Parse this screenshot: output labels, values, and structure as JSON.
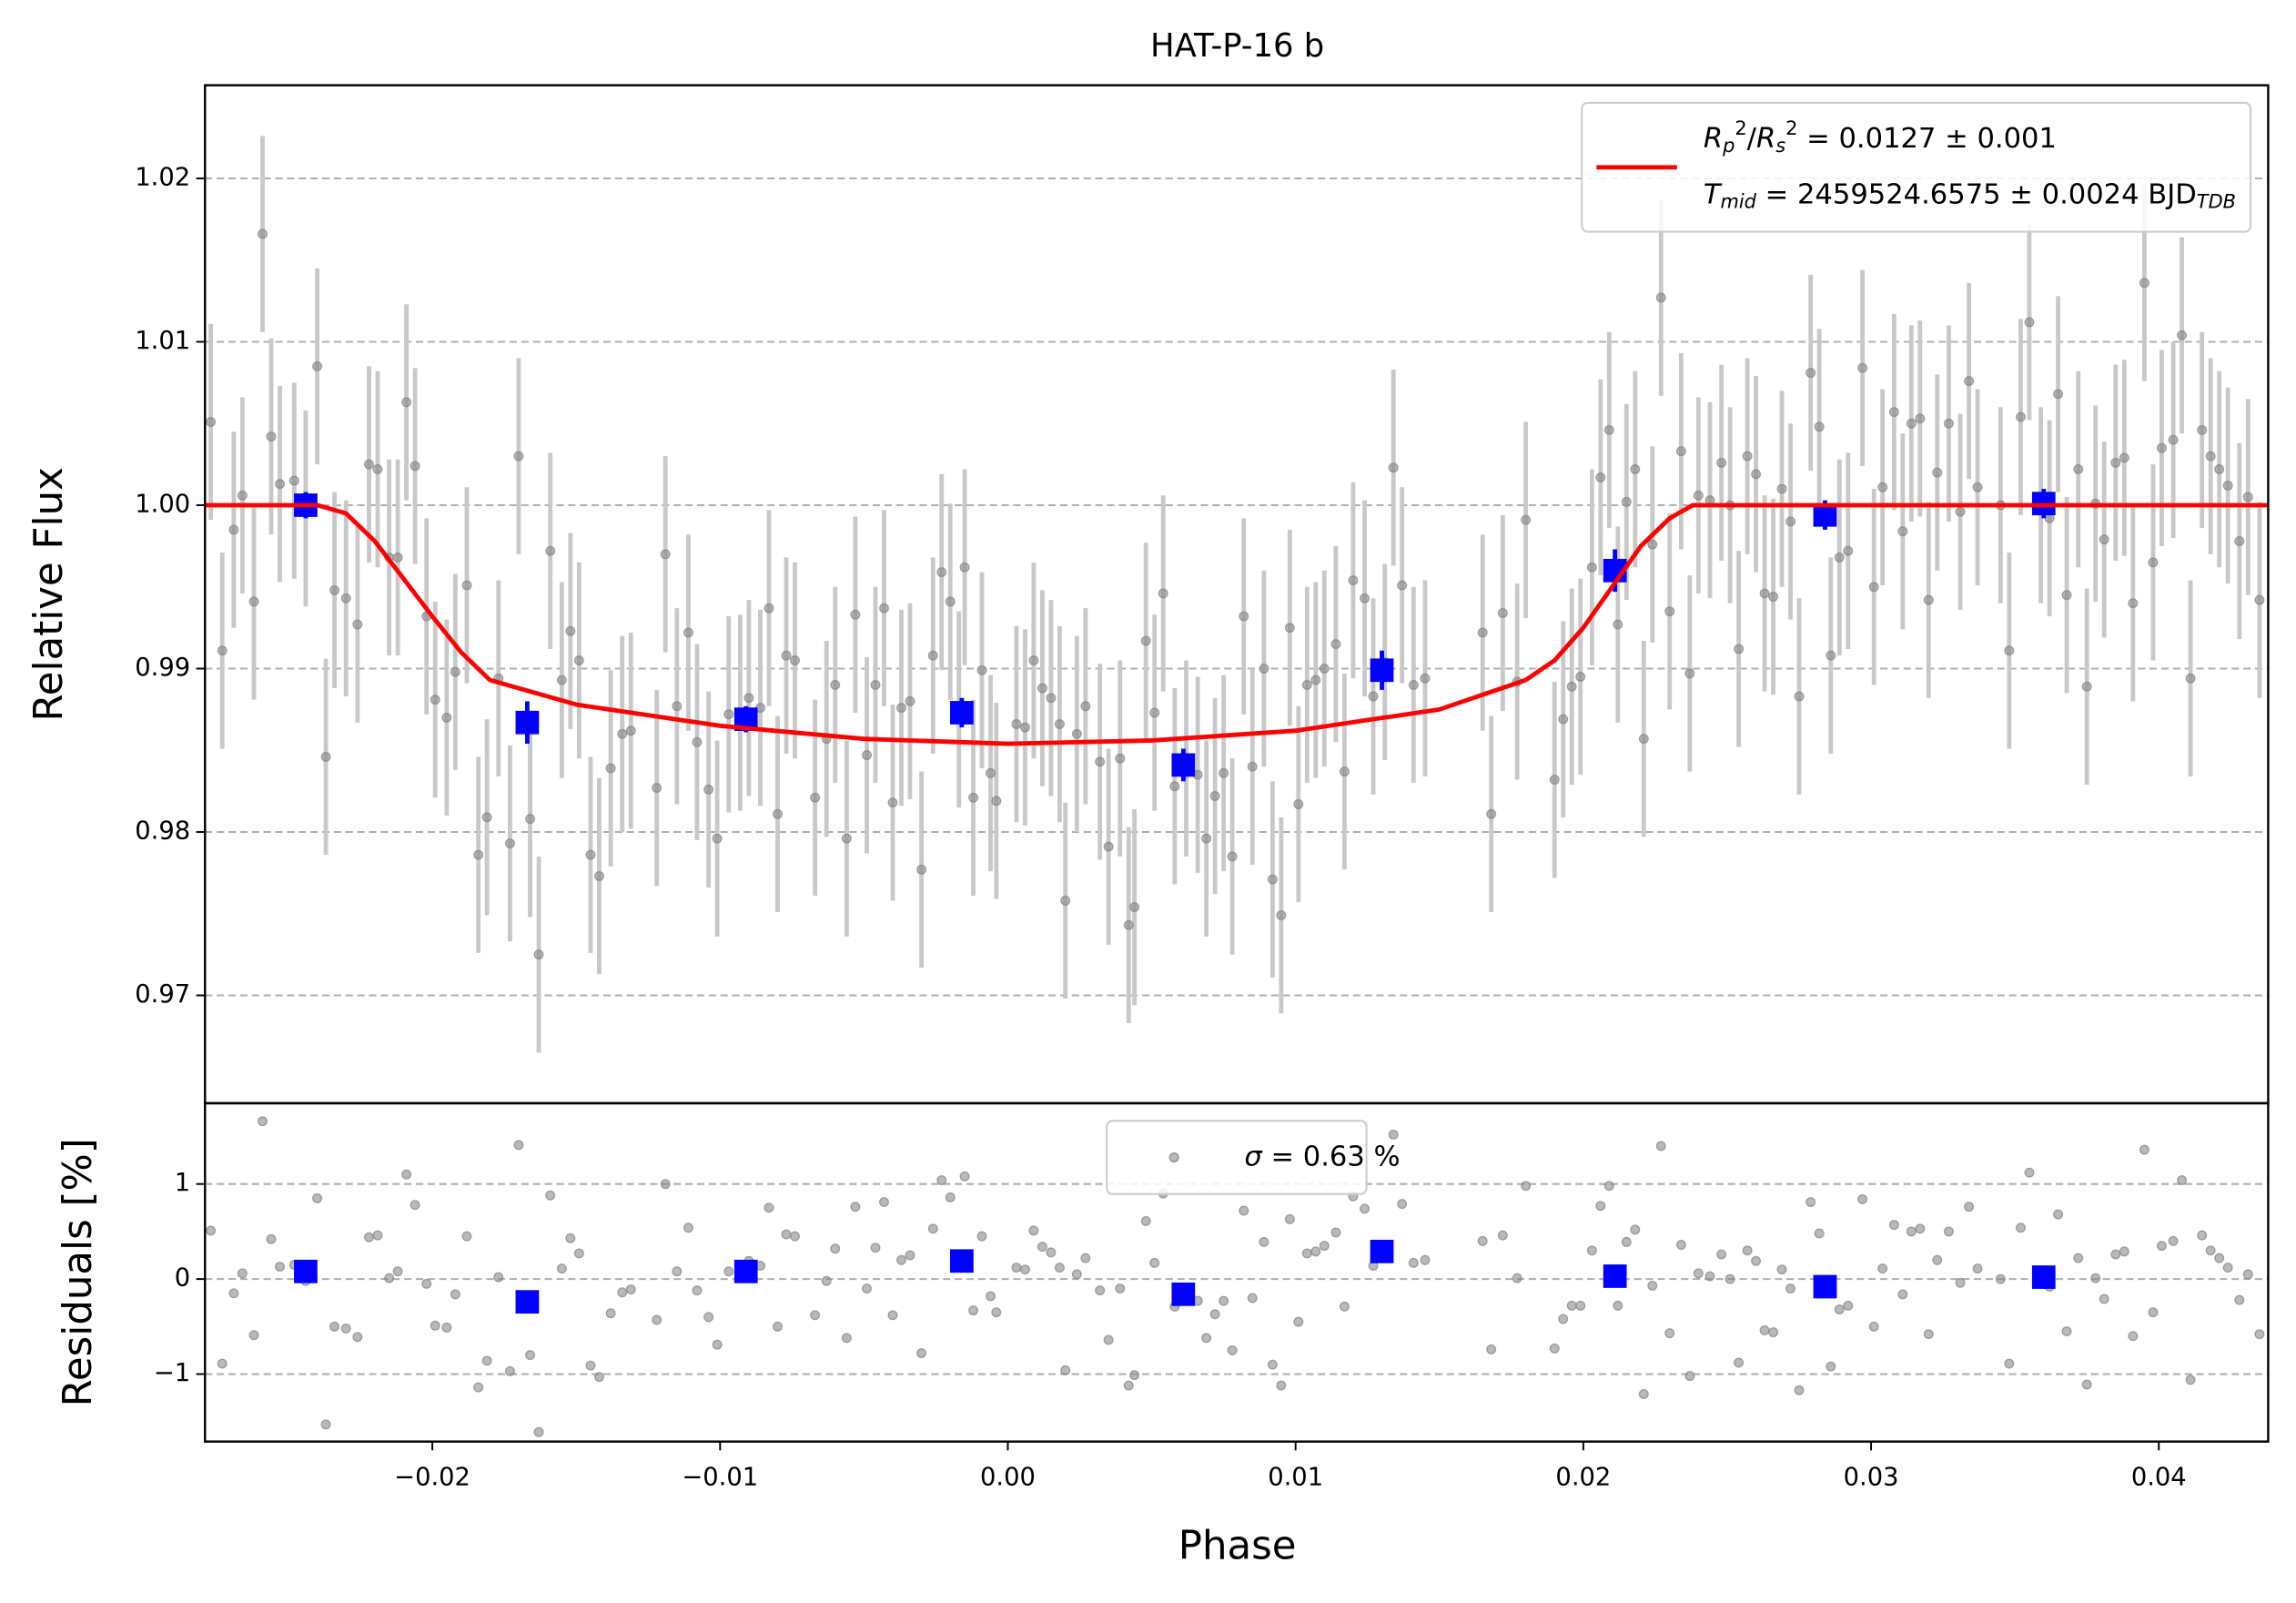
{
  "chart_data": {
    "type": "scatter",
    "title": "HAT-P-16 b",
    "xlabel": "Phase",
    "xlim": [
      -0.0279,
      0.0438
    ],
    "xticks": [
      {
        "value": -0.02,
        "label": "−0.02"
      },
      {
        "value": -0.01,
        "label": "−0.01"
      },
      {
        "value": 0,
        "label": "0.00"
      },
      0.01,
      0.02,
      0.03,
      0.04
    ],
    "x": [
      -0.0277,
      -0.0273,
      -0.0269,
      -0.0266,
      -0.0262,
      -0.0259,
      -0.0256,
      -0.0253,
      -0.0248,
      -0.0244,
      -0.024,
      -0.0237,
      -0.0234,
      -0.023,
      -0.0226,
      -0.0222,
      -0.0219,
      -0.0215,
      -0.0212,
      -0.0209,
      -0.0206,
      -0.0202,
      -0.0199,
      -0.0195,
      -0.0192,
      -0.0188,
      -0.0184,
      -0.0181,
      -0.0177,
      -0.0173,
      -0.017,
      -0.0166,
      -0.0163,
      -0.0159,
      -0.0155,
      -0.0152,
      -0.0149,
      -0.0145,
      -0.0142,
      -0.0138,
      -0.0134,
      -0.0131,
      -0.0122,
      -0.0119,
      -0.0115,
      -0.0111,
      -0.0108,
      -0.0104,
      -0.0101,
      -0.0097,
      -0.0093,
      -0.009,
      -0.0086,
      -0.0083,
      -0.008,
      -0.0077,
      -0.0074,
      -0.0067,
      -0.0063,
      -0.006,
      -0.0056,
      -0.0053,
      -0.0049,
      -0.0046,
      -0.0043,
      -0.004,
      -0.0037,
      -0.0034,
      -0.003,
      -0.0026,
      -0.0023,
      -0.002,
      -0.0017,
      -0.0015,
      -0.0012,
      -0.0009,
      -0.0006,
      -0.0004,
      0.0003,
      0.0006,
      0.0009,
      0.0012,
      0.0015,
      0.0018,
      0.002,
      0.0024,
      0.0027,
      0.0032,
      0.0035,
      0.0039,
      0.0042,
      0.0044,
      0.0048,
      0.0051,
      0.0054,
      0.0058,
      0.0062,
      0.0066,
      0.0069,
      0.0072,
      0.0075,
      0.0078,
      0.0082,
      0.0085,
      0.0089,
      0.0092,
      0.0095,
      0.0098,
      0.0101,
      0.0104,
      0.0107,
      0.011,
      0.0114,
      0.0117,
      0.012,
      0.0124,
      0.0127,
      0.0131,
      0.0134,
      0.0137,
      0.0141,
      0.0145,
      0.0165,
      0.0168,
      0.0172,
      0.0177,
      0.018,
      0.019,
      0.0193,
      0.0196,
      0.0199,
      0.0203,
      0.0206,
      0.0209,
      0.0212,
      0.0215,
      0.0218,
      0.0221,
      0.0224,
      0.0227,
      0.023,
      0.0234,
      0.0237,
      0.024,
      0.0244,
      0.0248,
      0.0251,
      0.0254,
      0.0257,
      0.026,
      0.0263,
      0.0266,
      0.0269,
      0.0272,
      0.0275,
      0.0279,
      0.0282,
      0.0286,
      0.0289,
      0.0292,
      0.0297,
      0.0301,
      0.0304,
      0.0308,
      0.0311,
      0.0314,
      0.0317,
      0.032,
      0.0323,
      0.0327,
      0.0331,
      0.0334,
      0.0337,
      0.0345,
      0.0348,
      0.0352,
      0.0355,
      0.0359,
      0.0362,
      0.0365,
      0.0368,
      0.0372,
      0.0375,
      0.0378,
      0.0381,
      0.0385,
      0.0388,
      0.0391,
      0.0395,
      0.0398,
      0.0401,
      0.0405,
      0.0408,
      0.0411,
      0.0415,
      0.0418,
      0.0421,
      0.0424,
      0.0428,
      0.0431,
      0.0435
    ],
    "panels": [
      {
        "ylabel": "Relative Flux",
        "ylim": [
          0.9634,
          1.0257
        ],
        "yticks": [
          0.97,
          0.98,
          0.99,
          {
            "value": 1,
            "label": "1.00"
          },
          1.01,
          1.02
        ],
        "grid": true,
        "legend": "upper right",
        "series": [
          {
            "kind": "errorbar",
            "color": "#808080",
            "ecolor": "#c8c8c8",
            "yerr": 0.006,
            "values": [
              1.0051,
              0.9911,
              0.9985,
              1.0006,
              0.9941,
              1.0166,
              1.0042,
              1.0013,
              1.0015,
              0.9998,
              1.0085,
              0.9846,
              0.9948,
              0.9943,
              0.9927,
              1.0025,
              1.0022,
              0.9968,
              0.9968,
              1.0063,
              1.0024,
              0.9932,
              0.9881,
              0.987,
              0.9898,
              0.9951,
              0.9786,
              0.9809,
              0.9894,
              0.9793,
              1.003,
              0.9808,
              0.9725,
              0.9972,
              0.9893,
              0.9923,
              0.9905,
              0.9786,
              0.9773,
              0.9839,
              0.986,
              0.9862,
              0.9827,
              0.997,
              0.9877,
              0.9922,
              0.9855,
              0.9826,
              0.9796,
              0.9872,
              0.9873,
              0.9882,
              0.9876,
              0.9937,
              0.9811,
              0.9908,
              0.9905,
              0.9821,
              0.9857,
              0.989,
              0.9796,
              0.9933,
              0.9847,
              0.989,
              0.9937,
              0.9818,
              0.9876,
              0.988,
              0.9777,
              0.9908,
              0.9959,
              0.9941,
              0.9875,
              0.9962,
              0.9821,
              0.9899,
              0.9836,
              0.9819,
              0.9866,
              0.9864,
              0.9905,
              0.9888,
              0.9882,
              0.9866,
              0.9758,
              0.986,
              0.9877,
              0.9843,
              0.9791,
              0.9845,
              0.9743,
              0.9754,
              0.9917,
              0.9873,
              0.9946,
              0.9828,
              0.9845,
              0.9835,
              0.9796,
              0.9822,
              0.9836,
              0.9785,
              0.9932,
              0.984,
              0.99,
              0.9771,
              0.9749,
              0.9925,
              0.9817,
              0.989,
              0.9893,
              0.99,
              0.9915,
              0.9837,
              0.9954,
              0.9943,
              0.9883,
              0.9904,
              1.0023,
              0.9951,
              0.989,
              0.9894,
              0.9922,
              0.9811,
              0.9934,
              0.9892,
              0.9991,
              0.9832,
              0.9869,
              0.9889,
              0.9895,
              0.9962,
              1.0017,
              1.0046,
              0.9927,
              1.0002,
              1.0022,
              0.9857,
              0.9976,
              1.0127,
              0.9935,
              1.0033,
              0.9897,
              1.0006,
              1.0003,
              1.0026,
              1.0,
              0.9912,
              1.003,
              1.0019,
              0.9946,
              0.9944,
              1.001,
              0.999,
              0.9883,
              1.0081,
              1.0048,
              0.9908,
              0.9968,
              0.9972,
              1.0084,
              0.995,
              1.0011,
              1.0057,
              0.9984,
              1.005,
              1.0053,
              0.9942,
              1.002,
              1.005,
              0.9996,
              1.0076,
              1.0011,
              1.0,
              0.9911,
              1.0054,
              1.0112,
              1.0,
              0.9992,
              1.0068,
              0.9945,
              1.0022,
              0.9889,
              1.0001,
              0.9979,
              1.0026,
              1.0029,
              0.994,
              1.0136,
              0.9965,
              1.0035,
              1.004,
              1.0104,
              0.9894,
              1.0046,
              1.003,
              1.0022,
              1.0012,
              0.9978,
              1.0005,
              0.9942
            ]
          },
          {
            "kind": "square",
            "color": "#0000ff",
            "x": [
              -0.0244,
              -0.0167,
              -0.0091,
              -0.0016,
              0.0061,
              0.013,
              0.0211,
              0.0284,
              0.036
            ],
            "values": [
              1.0,
              0.9867,
              0.9869,
              0.9873,
              0.9841,
              0.9899,
              0.996,
              0.9994,
              1.0001
            ],
            "errors": [
              0.0008,
              0.0013,
              0.0008,
              0.0009,
              0.001,
              0.0012,
              0.0013,
              0.0009,
              0.0009
            ]
          },
          {
            "kind": "line",
            "color": "#ff0000",
            "name": [
              [
                {
                  "text": "R",
                  "style": "italic"
                },
                {
                  "text": "p",
                  "style": "sub"
                },
                {
                  "text": "2",
                  "style": "sup"
                },
                {
                  "text": "/",
                  "style": "plain"
                },
                {
                  "text": "R",
                  "style": "italic"
                },
                {
                  "text": "s",
                  "style": "sub"
                },
                {
                  "text": "2",
                  "style": "sup"
                },
                {
                  "text": " = 0.0127 ± 0.001",
                  "style": "plain"
                }
              ],
              [
                {
                  "text": "T",
                  "style": "italic"
                },
                {
                  "text": "mid",
                  "style": "sub"
                },
                {
                  "text": " = 2459524.6575 ± 0.0024 BJD",
                  "style": "plain"
                },
                {
                  "text": "TDB",
                  "style": "sub"
                }
              ]
            ],
            "x": [
              -0.0279,
              -0.024,
              -0.023,
              -0.022,
              -0.021,
              -0.02,
              -0.019,
              -0.018,
              -0.015,
              -0.01,
              -0.005,
              0,
              0.005,
              0.01,
              0.015,
              0.018,
              0.019,
              0.02,
              0.021,
              0.022,
              0.023,
              0.0238,
              0.0438
            ],
            "values": [
              1,
              1,
              0.9995,
              0.9978,
              0.9955,
              0.9932,
              0.991,
              0.9893,
              0.9878,
              0.9865,
              0.9857,
              0.9854,
              0.9856,
              0.9862,
              0.9875,
              0.9893,
              0.9905,
              0.9925,
              0.995,
              0.9975,
              0.9992,
              1,
              1
            ]
          }
        ]
      },
      {
        "ylabel": "Residuals [%]",
        "ylim": [
          -1.71,
          1.85
        ],
        "yticks": [
          {
            "value": -1,
            "label": "−1"
          },
          0,
          1
        ],
        "grid": true,
        "legend": "upper center",
        "series": [
          {
            "kind": "point",
            "color": "#808080",
            "name": [
              [
                {
                  "text": "σ",
                  "style": "italic"
                },
                {
                  "text": " = 0.63 %",
                  "style": "plain"
                }
              ]
            ],
            "values": [
              0.51,
              -0.89,
              -0.15,
              0.06,
              -0.59,
              1.66,
              0.42,
              0.13,
              0.15,
              -0.02,
              0.85,
              -1.53,
              -0.5,
              -0.52,
              -0.61,
              0.44,
              0.46,
              0.01,
              0.08,
              1.1,
              0.78,
              -0.05,
              -0.49,
              -0.51,
              -0.16,
              0.45,
              -1.14,
              -0.86,
              0.02,
              -0.97,
              1.41,
              -0.8,
              -1.61,
              0.88,
              0.11,
              0.43,
              0.27,
              -0.91,
              -1.03,
              -0.36,
              -0.14,
              -0.11,
              -0.43,
              1.0,
              0.08,
              0.54,
              -0.12,
              -0.4,
              -0.69,
              0.08,
              0.09,
              0.19,
              0.14,
              0.75,
              -0.5,
              0.47,
              0.45,
              -0.38,
              -0.02,
              0.32,
              -0.62,
              0.76,
              -0.1,
              0.33,
              0.81,
              -0.38,
              0.2,
              0.25,
              -0.78,
              0.53,
              1.04,
              0.86,
              0.21,
              1.08,
              -0.33,
              0.45,
              -0.18,
              -0.35,
              0.12,
              0.1,
              0.51,
              0.34,
              0.28,
              0.12,
              -0.96,
              0.05,
              0.22,
              -0.12,
              -0.64,
              -0.1,
              -1.12,
              -1.01,
              0.61,
              0.17,
              0.9,
              -0.29,
              -0.12,
              -0.23,
              -0.62,
              -0.37,
              -0.23,
              -0.75,
              0.72,
              -0.2,
              0.39,
              -0.9,
              -1.12,
              0.63,
              -0.45,
              0.27,
              0.29,
              0.35,
              0.49,
              -0.29,
              0.87,
              0.74,
              0.14,
              0.34,
              1.52,
              0.79,
              0.17,
              0.2,
              0.4,
              -0.74,
              0.46,
              0.01,
              0.98,
              -0.73,
              -0.42,
              -0.28,
              -0.28,
              0.3,
              0.77,
              0.98,
              -0.28,
              0.39,
              0.52,
              -1.21,
              -0.07,
              1.4,
              -0.57,
              0.36,
              -1.02,
              0.06,
              0.03,
              0.26,
              0.0,
              -0.88,
              0.3,
              0.19,
              -0.54,
              -0.56,
              0.1,
              -0.1,
              -1.17,
              0.81,
              0.48,
              -0.92,
              -0.32,
              -0.28,
              0.84,
              -0.5,
              0.11,
              0.57,
              -0.16,
              0.5,
              0.53,
              -0.58,
              0.2,
              0.5,
              -0.04,
              0.76,
              0.11,
              0.0,
              -0.89,
              0.54,
              1.12,
              0.0,
              -0.08,
              0.68,
              -0.55,
              0.22,
              -1.11,
              0.01,
              -0.21,
              0.26,
              0.29,
              -0.6,
              1.36,
              -0.35,
              0.35,
              0.4,
              1.04,
              -1.06,
              0.46,
              0.3,
              0.22,
              0.12,
              -0.22,
              0.05,
              -0.58
            ]
          },
          {
            "kind": "square",
            "color": "#0000ff",
            "x": [
              -0.0244,
              -0.0167,
              -0.0091,
              -0.0016,
              0.0061,
              0.013,
              0.0211,
              0.0284,
              0.036
            ],
            "values": [
              0.08,
              -0.24,
              0.08,
              0.19,
              -0.16,
              0.29,
              0.03,
              -0.08,
              0.02
            ]
          }
        ]
      }
    ]
  }
}
